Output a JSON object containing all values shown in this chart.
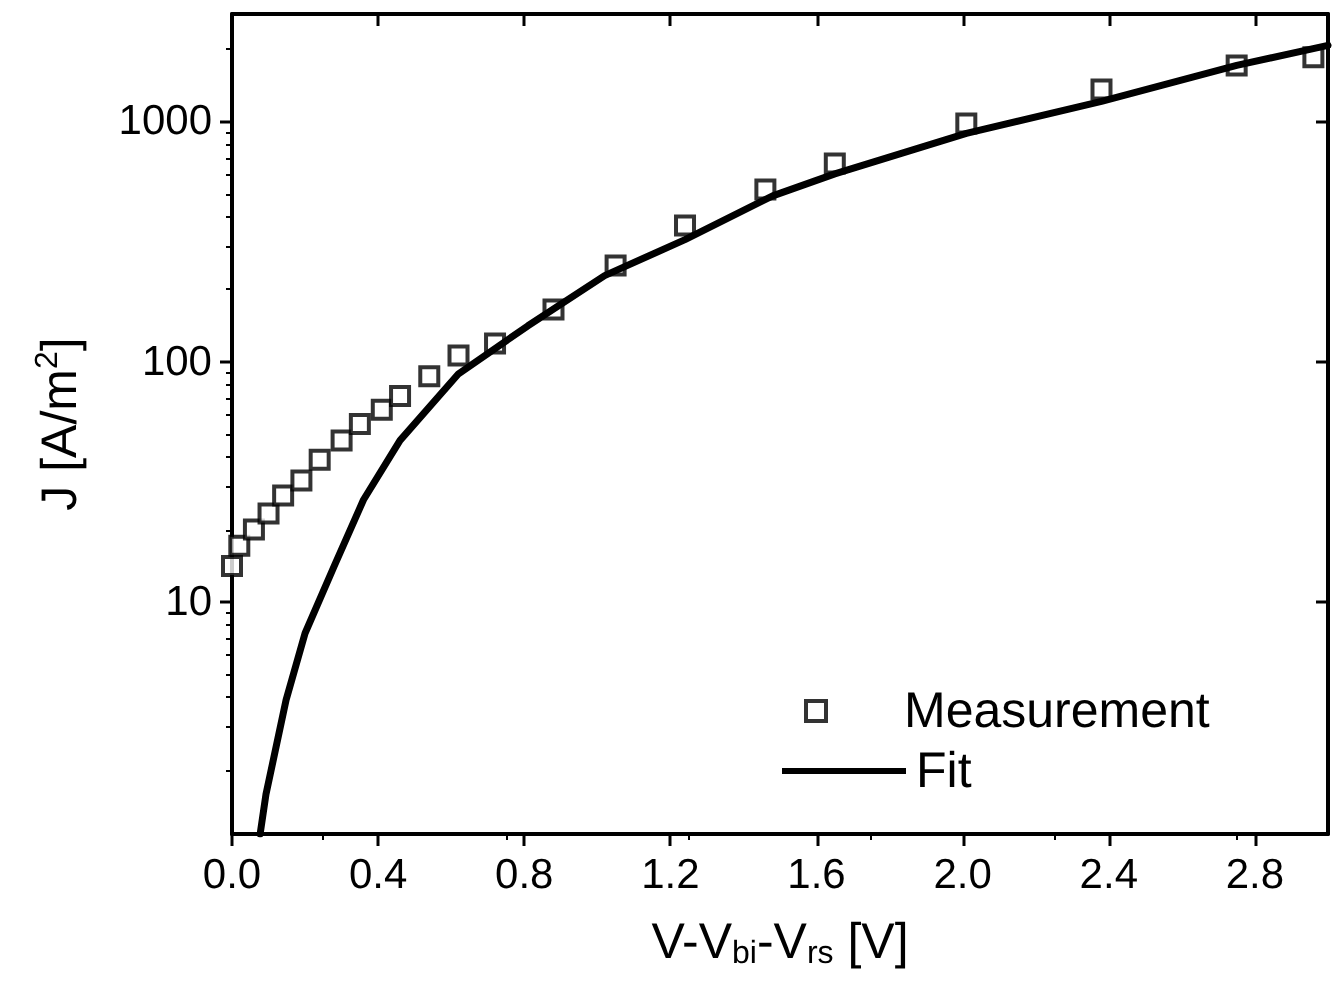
{
  "chart_data": {
    "type": "scatter",
    "xlabel": "V-V$_{bi}$-V$_{rs}$ [V]",
    "ylabel": "J [A/m$^{2}$]",
    "log": "y",
    "xlim": [
      0,
      3
    ],
    "xticks": [
      {
        "value": 0,
        "label": "0.0"
      },
      {
        "value": 0.4,
        "label": "0.4"
      },
      {
        "value": 0.8,
        "label": "0.8"
      },
      {
        "value": 1.2,
        "label": "1.2"
      },
      {
        "value": 1.6,
        "label": "1.6"
      },
      {
        "value": 2.0,
        "label": "2.0"
      },
      {
        "value": 2.4,
        "label": "2.4"
      },
      {
        "value": 2.8,
        "label": "2.8"
      }
    ],
    "ylim": [
      1.08,
      2800
    ],
    "yticks": [
      10,
      100,
      1000
    ],
    "grid": false,
    "legend": "bottom right",
    "series": [
      {
        "name": "Measurement",
        "marker": "square",
        "color": "#000000",
        "x": [
          0,
          0.02,
          0.06,
          0.1,
          0.14,
          0.19,
          0.24,
          0.3,
          0.35,
          0.41,
          0.46,
          0.54,
          0.62,
          0.72,
          0.88,
          1.05,
          1.24,
          1.46,
          1.65,
          2.01,
          2.38,
          2.75,
          2.96
        ],
        "values": [
          14.1,
          17.1,
          20,
          23.3,
          27.7,
          32,
          39,
          47,
          55,
          63,
          72,
          87,
          106,
          119,
          165,
          251,
          369,
          521,
          668,
          981,
          1359,
          1711,
          1848
        ]
      },
      {
        "name": "Fit",
        "type": "line",
        "marker": "none",
        "line_style": "solid",
        "color": "#000000",
        "x": [
          0.077,
          0.093,
          0.148,
          0.2,
          0.28,
          0.36,
          0.46,
          0.62,
          0.81,
          1.02,
          1.24,
          1.48,
          1.65,
          2.01,
          2.38,
          2.75,
          3.0
        ],
        "values": [
          1.08,
          1.58,
          3.9,
          7.4,
          14.1,
          26.6,
          47,
          89,
          141,
          228,
          322,
          490,
          605,
          891,
          1212,
          1711,
          2073
        ]
      }
    ]
  }
}
